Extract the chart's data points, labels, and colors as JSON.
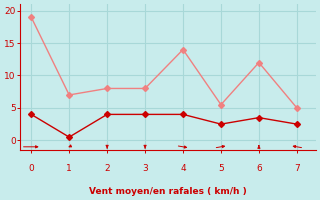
{
  "x": [
    0,
    1,
    2,
    3,
    4,
    5,
    6,
    7
  ],
  "y_rafales": [
    19,
    7,
    8,
    8,
    14,
    5.5,
    12,
    5
  ],
  "y_moyen": [
    4,
    0.5,
    4,
    4,
    4,
    2.5,
    3.5,
    2.5
  ],
  "color_rafales": "#f08080",
  "color_moyen": "#cc0000",
  "xlabel": "Vent moyen/en rafales ( km/h )",
  "xlabel_color": "#cc0000",
  "background_color": "#c8ecec",
  "grid_color": "#a8d8d8",
  "axis_color": "#cc0000",
  "tick_color": "#cc0000",
  "ylim": [
    -1.5,
    21
  ],
  "xlim": [
    -0.3,
    7.5
  ],
  "yticks": [
    0,
    5,
    10,
    15,
    20
  ],
  "xticks": [
    0,
    1,
    2,
    3,
    4,
    5,
    6,
    7
  ],
  "marker_size": 3,
  "line_width": 1.0,
  "arrow_angles_deg": [
    90,
    200,
    180,
    180,
    135,
    45,
    0,
    315
  ]
}
